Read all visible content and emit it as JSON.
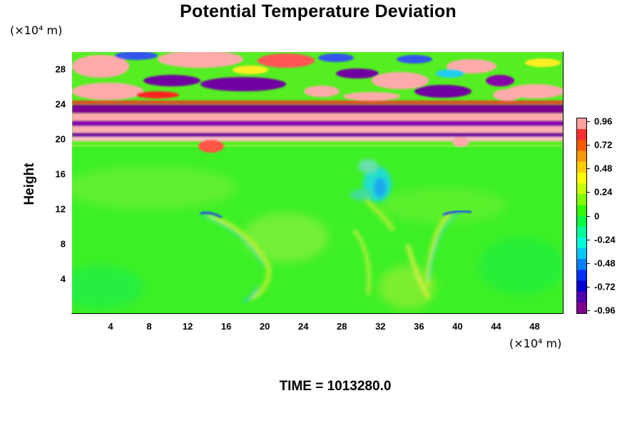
{
  "title": "Potential Temperature Deviation",
  "y_unit": "(×10⁴ m)",
  "x_unit": "(×10⁴ m)",
  "footer": {
    "time_label": "TIME = 1013280.0"
  },
  "chart_data": {
    "type": "heatmap",
    "title": "Potential Temperature Deviation",
    "ylabel": "Height",
    "xlabel": "",
    "x_ticks": [
      "4",
      "8",
      "12",
      "16",
      "20",
      "24",
      "28",
      "32",
      "36",
      "40",
      "44",
      "48"
    ],
    "y_ticks": [
      "4",
      "8",
      "12",
      "16",
      "20",
      "24",
      "28"
    ],
    "xlim": [
      0,
      51
    ],
    "ylim": [
      0,
      30
    ],
    "colorbar": {
      "labels": [
        "0.96",
        "0.72",
        "0.48",
        "0.24",
        "0",
        "-0.24",
        "-0.48",
        "-0.72",
        "-0.96"
      ],
      "range": [
        -0.96,
        0.96
      ]
    }
  }
}
